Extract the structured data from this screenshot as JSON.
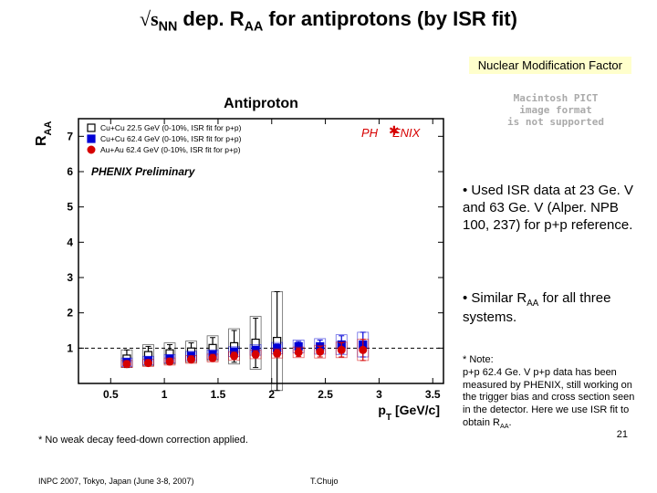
{
  "title_prefix": "√s",
  "title_sub1": "NN",
  "title_mid": " dep. R",
  "title_sub2": "AA",
  "title_suffix": " for antiprotons (by ISR fit)",
  "nmf_label": "Nuclear Modification Factor",
  "pict_line1": "Macintosh PICT",
  "pict_line2": "image format",
  "pict_line3": "is not supported",
  "bullet1": "• Used ISR data at 23 Ge. V and 63 Ge. V (Alper. NPB 100, 237) for p+p reference.",
  "bullet2_pre": "• Similar R",
  "bullet2_sub": "AA",
  "bullet2_post": " for all three systems.",
  "note_header": "* Note:",
  "note_body_pre": "p+p 62.4 Ge. V p+p data has been measured by PHENIX, still working on the trigger bias and cross section seen in the detector. Here we use ISR fit to obtain R",
  "note_sub": "AA",
  "note_body_post": ".",
  "page_num": "21",
  "feedown": "* No weak decay feed-down correction applied.",
  "footer_left": "INPC 2007, Tokyo, Japan (June 3-8, 2007)",
  "footer_center": "T.Chujo",
  "chart": {
    "type": "scatter-errorbar",
    "plot_title": "Antiproton",
    "y_axis_label": "R_AA",
    "x_axis_label": "p_T [GeV/c]",
    "xlim": [
      0.2,
      3.6
    ],
    "ylim": [
      0,
      7.5
    ],
    "xticks": [
      0.5,
      1,
      1.5,
      2,
      2.5,
      3,
      3.5
    ],
    "yticks": [
      1,
      2,
      3,
      4,
      5,
      6,
      7
    ],
    "ref_line_y": 1,
    "background_color": "#ffffff",
    "axis_color": "#000000",
    "legend": [
      {
        "label": "Cu+Cu 22.5 GeV (0-10%, ISR fit for p+p)",
        "color": "#000000",
        "fill": "#ffffff",
        "marker": "square-open"
      },
      {
        "label": "Cu+Cu 62.4 GeV (0-10%, ISR fit for p+p)",
        "color": "#0000d6",
        "fill": "#0000d6",
        "marker": "square"
      },
      {
        "label": "Au+Au 62.4 GeV (0-10%, ISR fit for p+p)",
        "color": "#d60000",
        "fill": "#d60000",
        "marker": "circle"
      }
    ],
    "prelim_text": "PHENIX Preliminary",
    "phenix_logo_text": "PH ENIX",
    "series": [
      {
        "name": "Cu+Cu 22.5",
        "color": "#000000",
        "fill": "#ffffff",
        "marker": "square-open",
        "points": [
          {
            "x": 0.65,
            "y": 0.7,
            "ey": 0.25,
            "box_ey": 0.25
          },
          {
            "x": 0.85,
            "y": 0.8,
            "ey": 0.25,
            "box_ey": 0.3
          },
          {
            "x": 1.05,
            "y": 0.85,
            "ey": 0.25,
            "box_ey": 0.3
          },
          {
            "x": 1.25,
            "y": 0.9,
            "ey": 0.25,
            "box_ey": 0.3
          },
          {
            "x": 1.45,
            "y": 1.0,
            "ey": 0.3,
            "box_ey": 0.35
          },
          {
            "x": 1.65,
            "y": 1.05,
            "ey": 0.45,
            "box_ey": 0.5
          },
          {
            "x": 1.85,
            "y": 1.15,
            "ey": 0.7,
            "box_ey": 0.75
          },
          {
            "x": 2.05,
            "y": 1.2,
            "ey": 1.4,
            "box_ey": 1.4
          }
        ]
      },
      {
        "name": "Cu+Cu 62.4",
        "color": "#0000d6",
        "fill": "#0000d6",
        "marker": "square",
        "points": [
          {
            "x": 0.65,
            "y": 0.6,
            "ey": 0.08,
            "box_ey": 0.12
          },
          {
            "x": 0.85,
            "y": 0.65,
            "ey": 0.08,
            "box_ey": 0.12
          },
          {
            "x": 1.05,
            "y": 0.7,
            "ey": 0.08,
            "box_ey": 0.12
          },
          {
            "x": 1.25,
            "y": 0.78,
            "ey": 0.09,
            "box_ey": 0.13
          },
          {
            "x": 1.45,
            "y": 0.82,
            "ey": 0.09,
            "box_ey": 0.13
          },
          {
            "x": 1.65,
            "y": 0.9,
            "ey": 0.1,
            "box_ey": 0.14
          },
          {
            "x": 1.85,
            "y": 0.95,
            "ey": 0.1,
            "box_ey": 0.15
          },
          {
            "x": 2.05,
            "y": 1.0,
            "ey": 0.12,
            "box_ey": 0.16
          },
          {
            "x": 2.25,
            "y": 1.05,
            "ey": 0.14,
            "box_ey": 0.18
          },
          {
            "x": 2.45,
            "y": 1.05,
            "ey": 0.18,
            "box_ey": 0.22
          },
          {
            "x": 2.65,
            "y": 1.1,
            "ey": 0.25,
            "box_ey": 0.28
          },
          {
            "x": 2.85,
            "y": 1.1,
            "ey": 0.35,
            "box_ey": 0.35
          }
        ]
      },
      {
        "name": "Au+Au 62.4",
        "color": "#d60000",
        "fill": "#d60000",
        "marker": "circle",
        "points": [
          {
            "x": 0.65,
            "y": 0.55,
            "ey": 0.08,
            "box_ey": 0.1
          },
          {
            "x": 0.85,
            "y": 0.58,
            "ey": 0.08,
            "box_ey": 0.1
          },
          {
            "x": 1.05,
            "y": 0.62,
            "ey": 0.08,
            "box_ey": 0.1
          },
          {
            "x": 1.25,
            "y": 0.68,
            "ey": 0.08,
            "box_ey": 0.11
          },
          {
            "x": 1.45,
            "y": 0.72,
            "ey": 0.08,
            "box_ey": 0.11
          },
          {
            "x": 1.65,
            "y": 0.78,
            "ey": 0.09,
            "box_ey": 0.12
          },
          {
            "x": 1.85,
            "y": 0.82,
            "ey": 0.09,
            "box_ey": 0.12
          },
          {
            "x": 2.05,
            "y": 0.85,
            "ey": 0.1,
            "box_ey": 0.13
          },
          {
            "x": 2.25,
            "y": 0.88,
            "ey": 0.12,
            "box_ey": 0.15
          },
          {
            "x": 2.45,
            "y": 0.9,
            "ey": 0.15,
            "box_ey": 0.18
          },
          {
            "x": 2.65,
            "y": 0.95,
            "ey": 0.2,
            "box_ey": 0.22
          },
          {
            "x": 2.85,
            "y": 0.95,
            "ey": 0.3,
            "box_ey": 0.3
          }
        ]
      }
    ]
  }
}
